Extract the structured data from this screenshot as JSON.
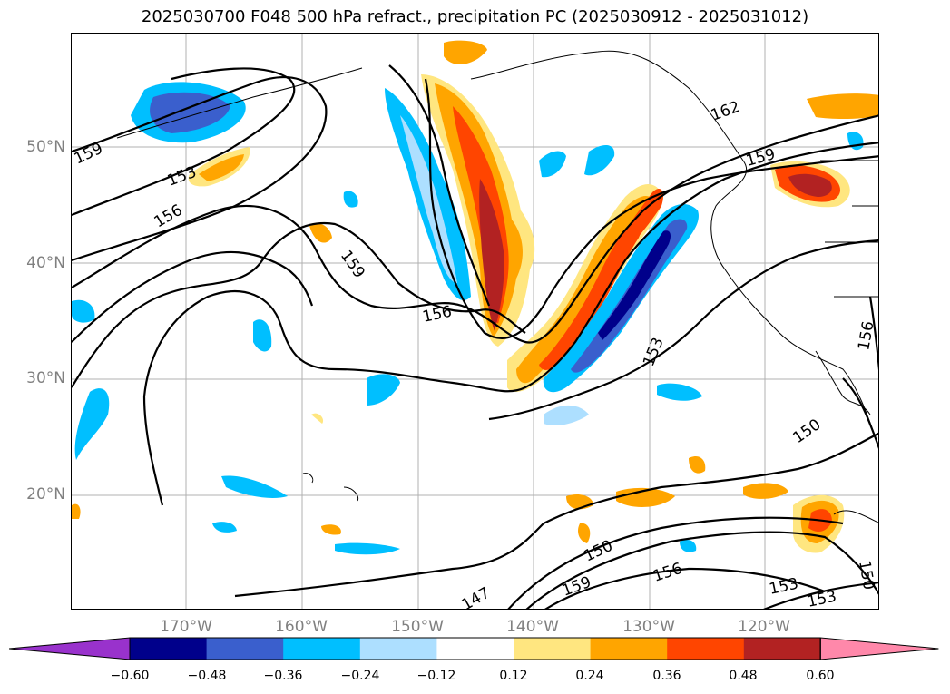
{
  "title": "2025030700 F048 500 hPa refract., precipitation PC (2025030912 - 2025031012)",
  "axes": {
    "lat_labels": [
      "50°N",
      "40°N",
      "30°N",
      "20°N"
    ],
    "lon_labels": [
      "170°W",
      "160°W",
      "150°W",
      "140°W",
      "130°W",
      "120°W"
    ],
    "grid": true
  },
  "contour_labels": [
    "159",
    "153",
    "156",
    "159",
    "156",
    "153",
    "162",
    "159",
    "150",
    "150",
    "159",
    "156",
    "153",
    "153",
    "150",
    "156",
    "147"
  ],
  "colorbar": {
    "ticks": [
      "−0.60",
      "−0.48",
      "−0.36",
      "−0.24",
      "−0.12",
      "0.12",
      "0.24",
      "0.36",
      "0.48",
      "0.60"
    ],
    "colors": [
      "#9932CC",
      "#00008B",
      "#3A5FCD",
      "#00BFFF",
      "#ADDFFF",
      "#FFFFFF",
      "#FFE680",
      "#FFA500",
      "#FF4500",
      "#B22222",
      "#FF88AA"
    ]
  },
  "colors": {
    "neg_strong": "#00008B",
    "neg_mid": "#3A5FCD",
    "neg": "#00BFFF",
    "neg_light": "#ADDFFF",
    "pos_light": "#FFE680",
    "pos": "#FFA500",
    "pos_mid": "#FF4500",
    "pos_strong": "#B22222",
    "pos_max": "#FF88AA"
  }
}
